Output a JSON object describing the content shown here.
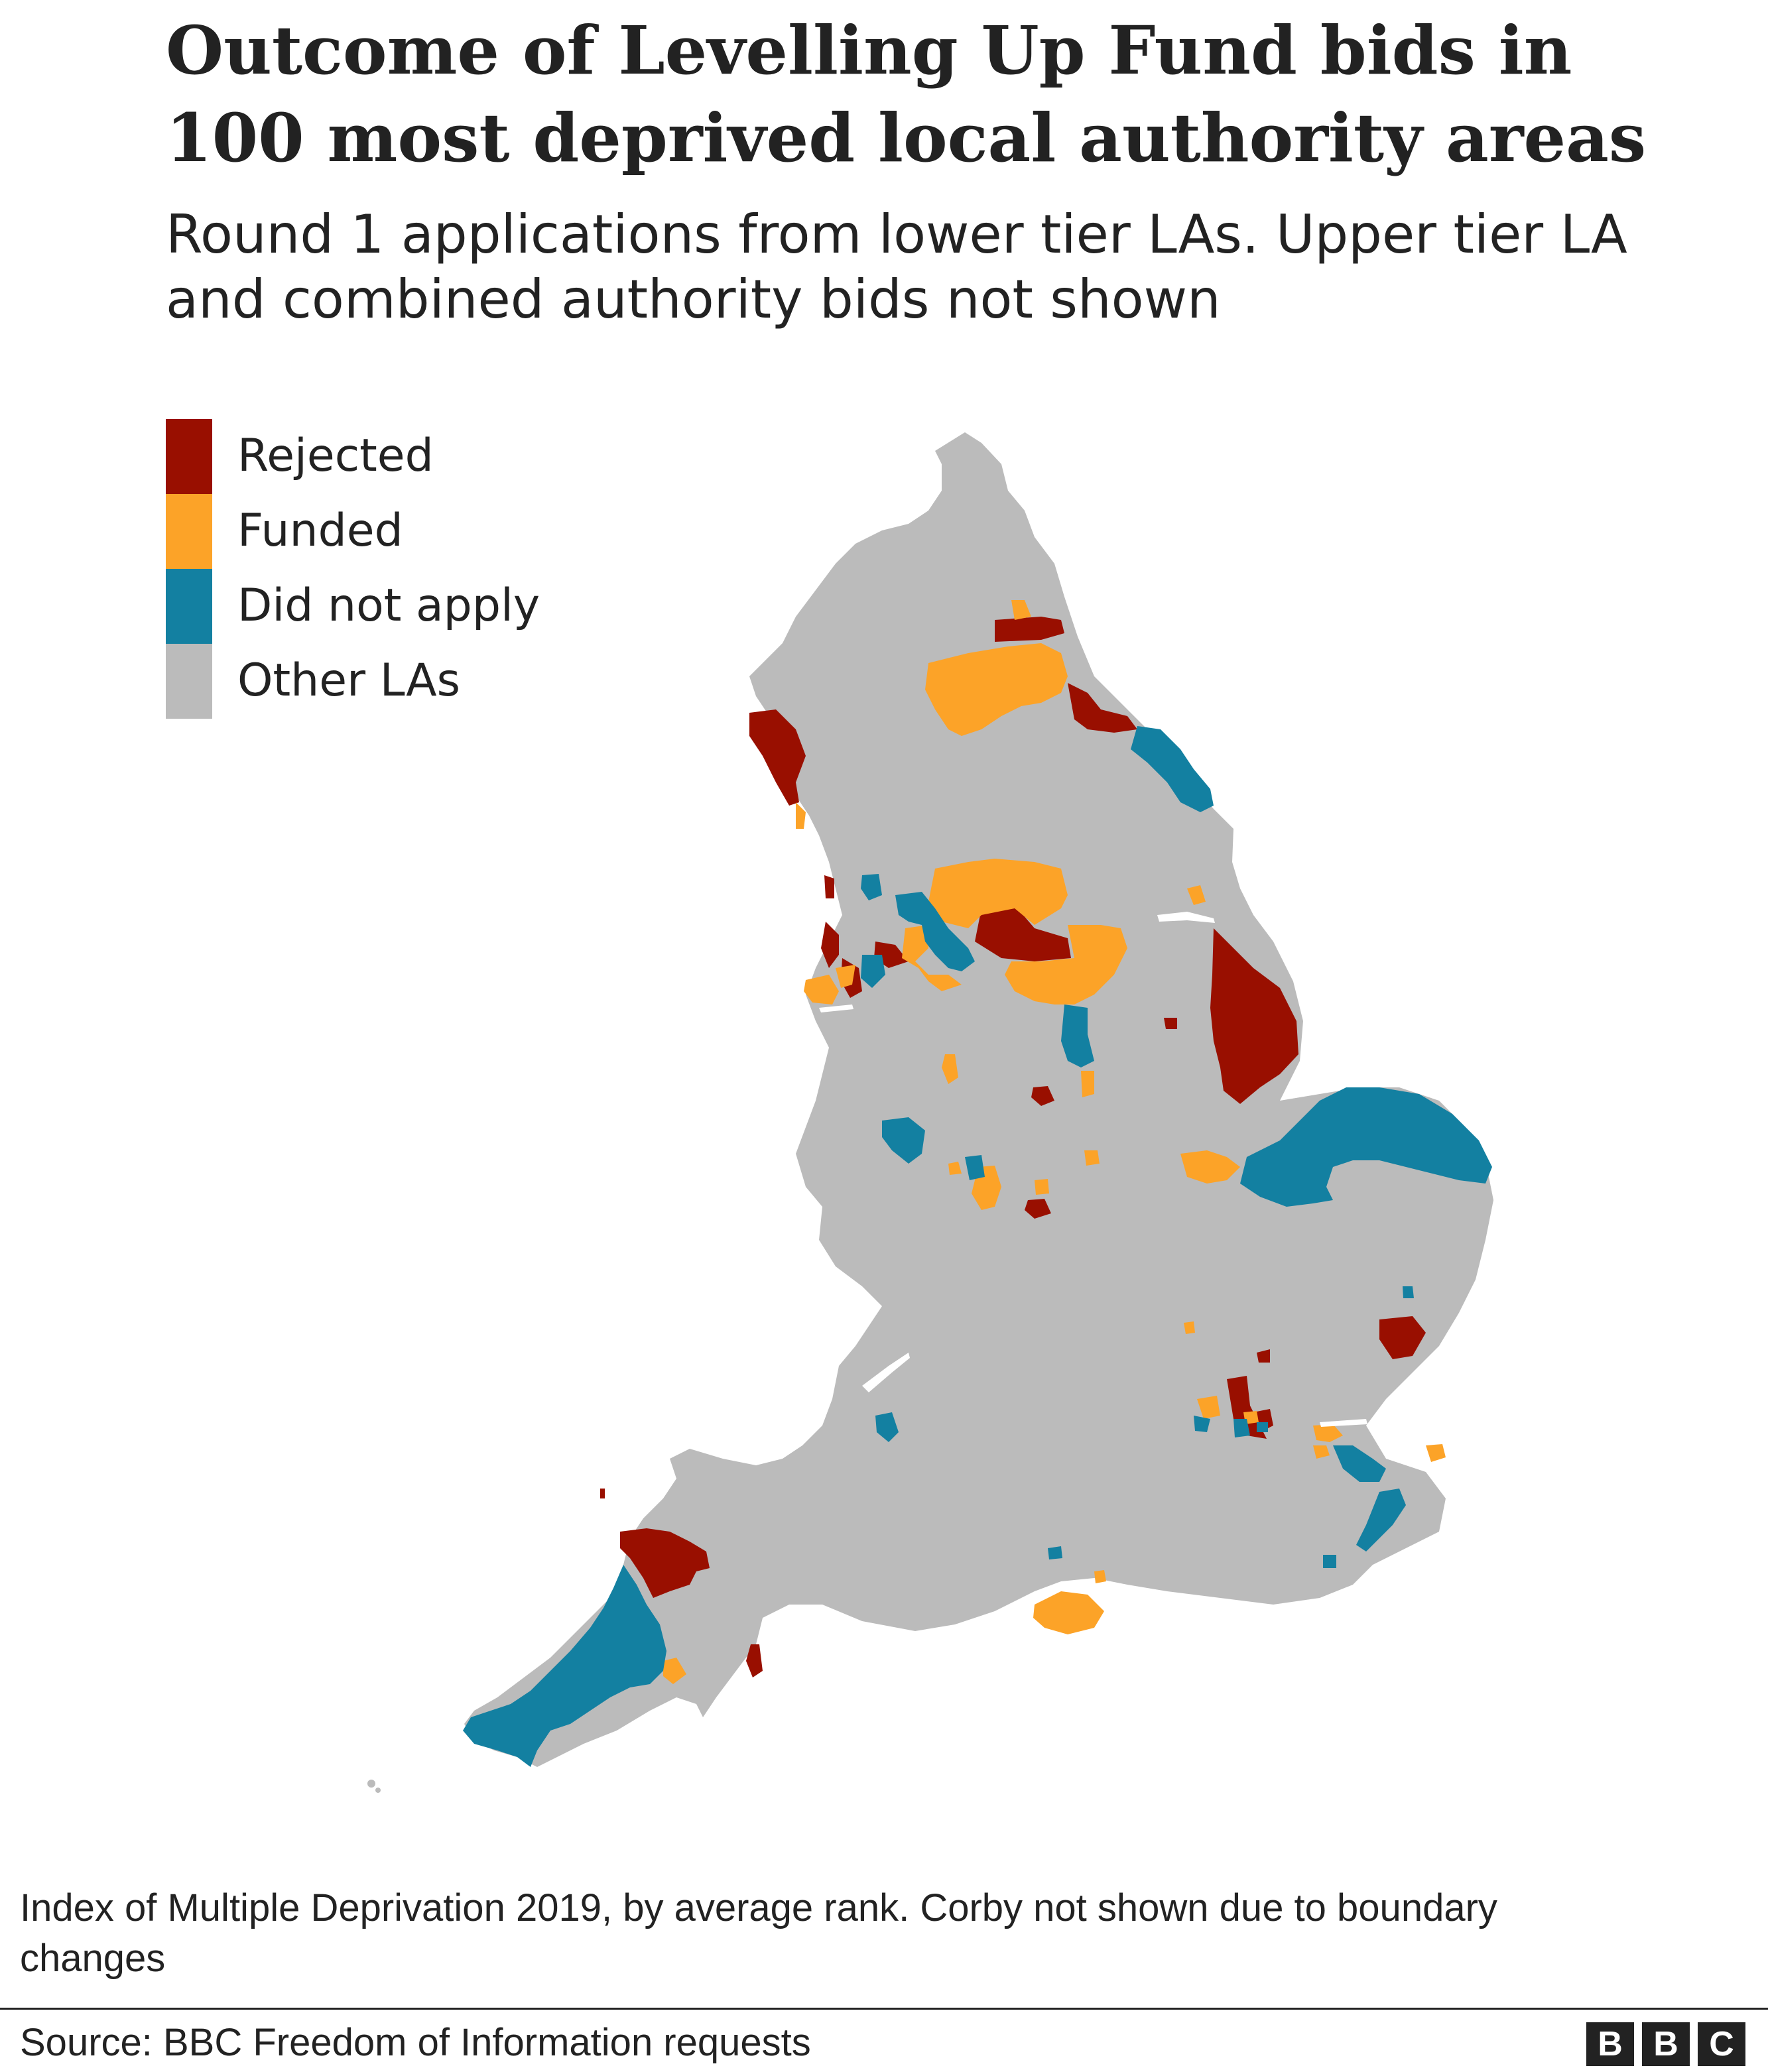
{
  "title": "Outcome of Levelling Up Fund bids in 100 most deprived local authority areas",
  "subtitle": "Round 1 applications from lower tier LAs. Upper tier LA and combined authority bids not shown",
  "legend": [
    {
      "label": "Rejected",
      "color": "#990f00"
    },
    {
      "label": "Funded",
      "color": "#fca328"
    },
    {
      "label": "Did not apply",
      "color": "#1380a1"
    },
    {
      "label": "Other LAs",
      "color": "#bbbbbb"
    }
  ],
  "map": {
    "land_color": "#bbbbbb",
    "region": "England",
    "categories": [
      "Rejected",
      "Funded",
      "Did not apply",
      "Other LAs"
    ]
  },
  "note": "Index of Multiple Deprivation 2019, by average rank. Corby not shown due to boundary changes",
  "source": "Source: BBC Freedom of Information requests",
  "logo": [
    "B",
    "B",
    "C"
  ]
}
